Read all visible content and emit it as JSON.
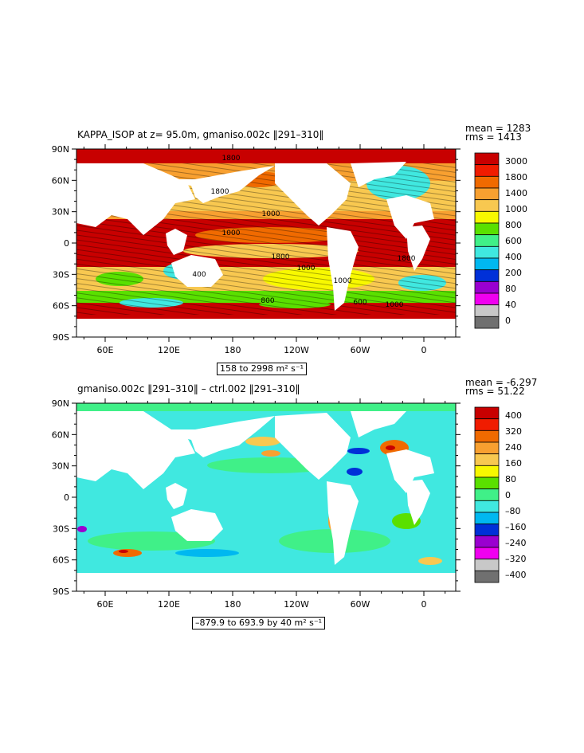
{
  "panels": [
    {
      "title": "KAPPA_ISOP at z=  95.0m, gmaniso.002c ‖291–310‖",
      "stats": {
        "mean": "mean = 1283",
        "rms": "rms = 1413"
      },
      "range": "158 to 2998 m² s⁻¹",
      "lat_ticks": [
        "90N",
        "60N",
        "30N",
        "0",
        "30S",
        "60S",
        "90S"
      ],
      "lon_ticks": [
        "60E",
        "120E",
        "180",
        "120W",
        "60W",
        "0"
      ],
      "colorbar_labels": [
        "3000",
        "1800",
        "1400",
        "1000",
        "800",
        "600",
        "400",
        "200",
        "80",
        "40",
        "0"
      ],
      "colorbar_colors": [
        "#c80000",
        "#f01c00",
        "#f06a00",
        "#f8a030",
        "#f8c850",
        "#f8f800",
        "#5ae000",
        "#40f088",
        "#40e8e0",
        "#00b8f0",
        "#0030d8",
        "#9a00d0",
        "#f000f0",
        "#c8c8c8",
        "#707070"
      ],
      "contour_labels": [
        "1800",
        "1800",
        "1000",
        "1000",
        "1800",
        "400",
        "1000",
        "1000",
        "1800",
        "800",
        "600",
        "1000"
      ]
    },
    {
      "title": "gmaniso.002c ‖291–310‖ – ctrl.002 ‖291–310‖",
      "stats": {
        "mean": "mean = -6.297",
        "rms": "rms = 51.22"
      },
      "range": "–879.9 to 693.9 by 40 m² s⁻¹",
      "lat_ticks": [
        "90N",
        "60N",
        "30N",
        "0",
        "30S",
        "60S",
        "90S"
      ],
      "lon_ticks": [
        "60E",
        "120E",
        "180",
        "120W",
        "60W",
        "0"
      ],
      "colorbar_labels": [
        "400",
        "320",
        "240",
        "160",
        "80",
        "0",
        "–80",
        "–160",
        "–240",
        "–320",
        "–400"
      ],
      "colorbar_colors": [
        "#c80000",
        "#f01c00",
        "#f06a00",
        "#f8a030",
        "#f8c850",
        "#f8f800",
        "#5ae000",
        "#40f088",
        "#40e8e0",
        "#00b8f0",
        "#0030d8",
        "#9a00d0",
        "#f000f0",
        "#c8c8c8",
        "#707070"
      ]
    }
  ]
}
